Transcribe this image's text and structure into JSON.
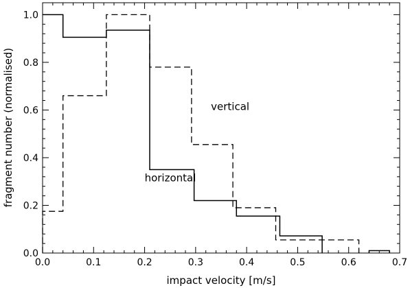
{
  "chart_data": {
    "type": "line",
    "step": true,
    "title": "",
    "xlabel": "impact velocity [m/s]",
    "ylabel": "fragment number (normalised)",
    "xlim": [
      0.0,
      0.7
    ],
    "ylim": [
      0.0,
      1.05
    ],
    "xticks": [
      0.0,
      0.1,
      0.2,
      0.3,
      0.4,
      0.5,
      0.6,
      0.7
    ],
    "yticks": [
      0.0,
      0.2,
      0.4,
      0.6,
      0.8,
      1.0
    ],
    "xtick_labels": [
      "0.0",
      "0.1",
      "0.2",
      "0.3",
      "0.4",
      "0.5",
      "0.6",
      "0.7"
    ],
    "ytick_labels": [
      "0.0",
      "0.2",
      "0.4",
      "0.6",
      "0.8",
      "1.0"
    ],
    "grid": false,
    "legend": "none",
    "series": [
      {
        "style": "solid",
        "edges": [
          0.0,
          0.04,
          0.125,
          0.21,
          0.297,
          0.38,
          0.465,
          0.548
        ],
        "values": [
          1.0,
          0.905,
          0.935,
          0.35,
          0.22,
          0.155,
          0.072
        ],
        "label": {
          "text": "horizontal",
          "x": 0.2,
          "y": 0.3
        }
      },
      {
        "style": "dashed",
        "edges": [
          0.0,
          0.04,
          0.125,
          0.21,
          0.292,
          0.373,
          0.457,
          0.62
        ],
        "values": [
          0.175,
          0.66,
          1.0,
          0.78,
          0.455,
          0.19,
          0.055
        ],
        "label": {
          "text": "vertical",
          "x": 0.33,
          "y": 0.6
        }
      },
      {
        "style": "solid",
        "edges": [
          0.64,
          0.68
        ],
        "values": [
          0.01
        ],
        "label": {
          "text": "",
          "x": 0,
          "y": 0
        }
      }
    ],
    "colors": {
      "line": "#000000",
      "background": "#ffffff"
    }
  }
}
